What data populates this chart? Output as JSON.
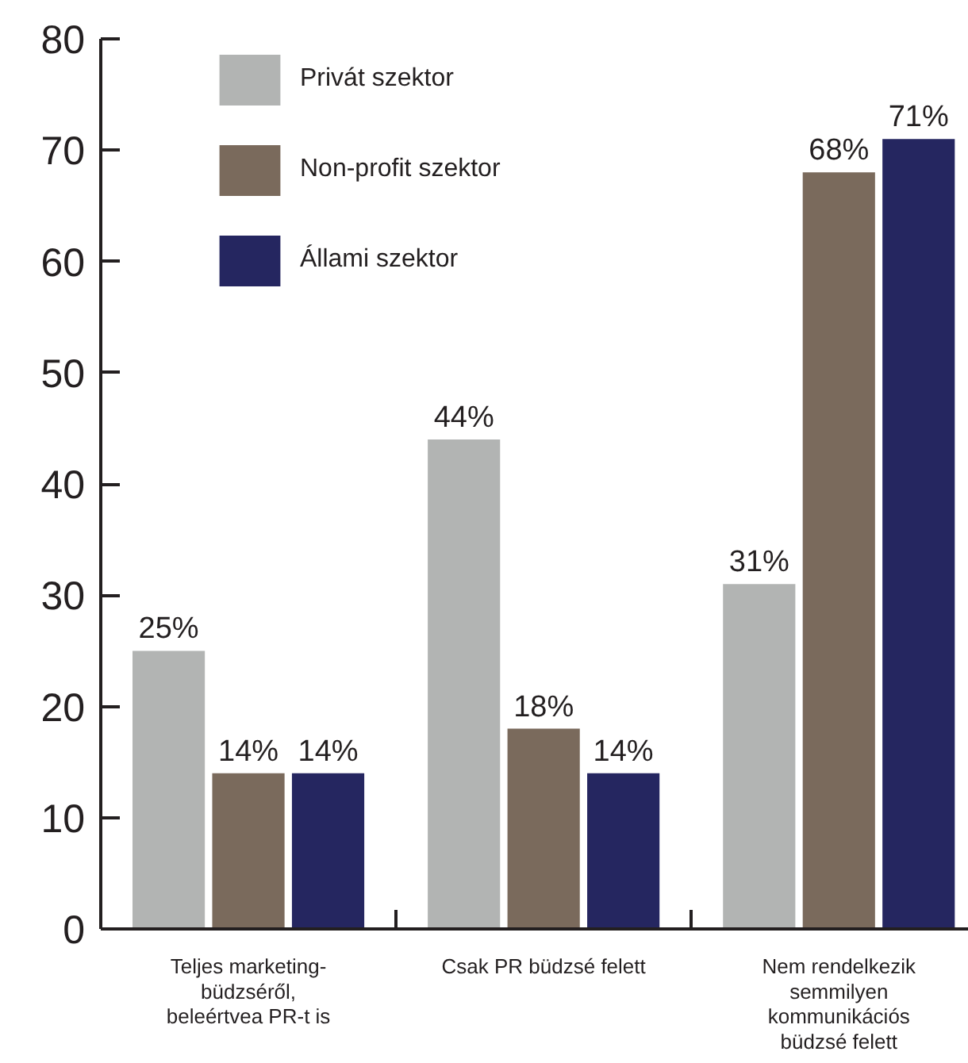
{
  "chart_data": {
    "type": "bar",
    "categories": [
      "Teljes marketing-\nbüdzséről,\nbeleértvea PR-t is",
      "Csak PR büdzsé felett",
      "Nem rendelkezik\nsemmilyen\nkommunikációs\nbüdzsé felett"
    ],
    "series": [
      {
        "name": "Privát szektor",
        "color": "#b2b4b3",
        "values": [
          25,
          44,
          31
        ],
        "value_labels": [
          "25%",
          "44%",
          "31%"
        ]
      },
      {
        "name": "Non-profit szektor",
        "color": "#7a6a5c",
        "values": [
          14,
          18,
          68
        ],
        "value_labels": [
          "14%",
          "18%",
          "68%"
        ]
      },
      {
        "name": "Állami szektor",
        "color": "#252660",
        "values": [
          14,
          14,
          71
        ],
        "value_labels": [
          "14%",
          "14%",
          "71%"
        ]
      }
    ],
    "ylim": [
      0,
      80
    ],
    "yticks": [
      0,
      10,
      20,
      30,
      40,
      50,
      60,
      70,
      80
    ],
    "grid": false,
    "legend": "top left"
  }
}
